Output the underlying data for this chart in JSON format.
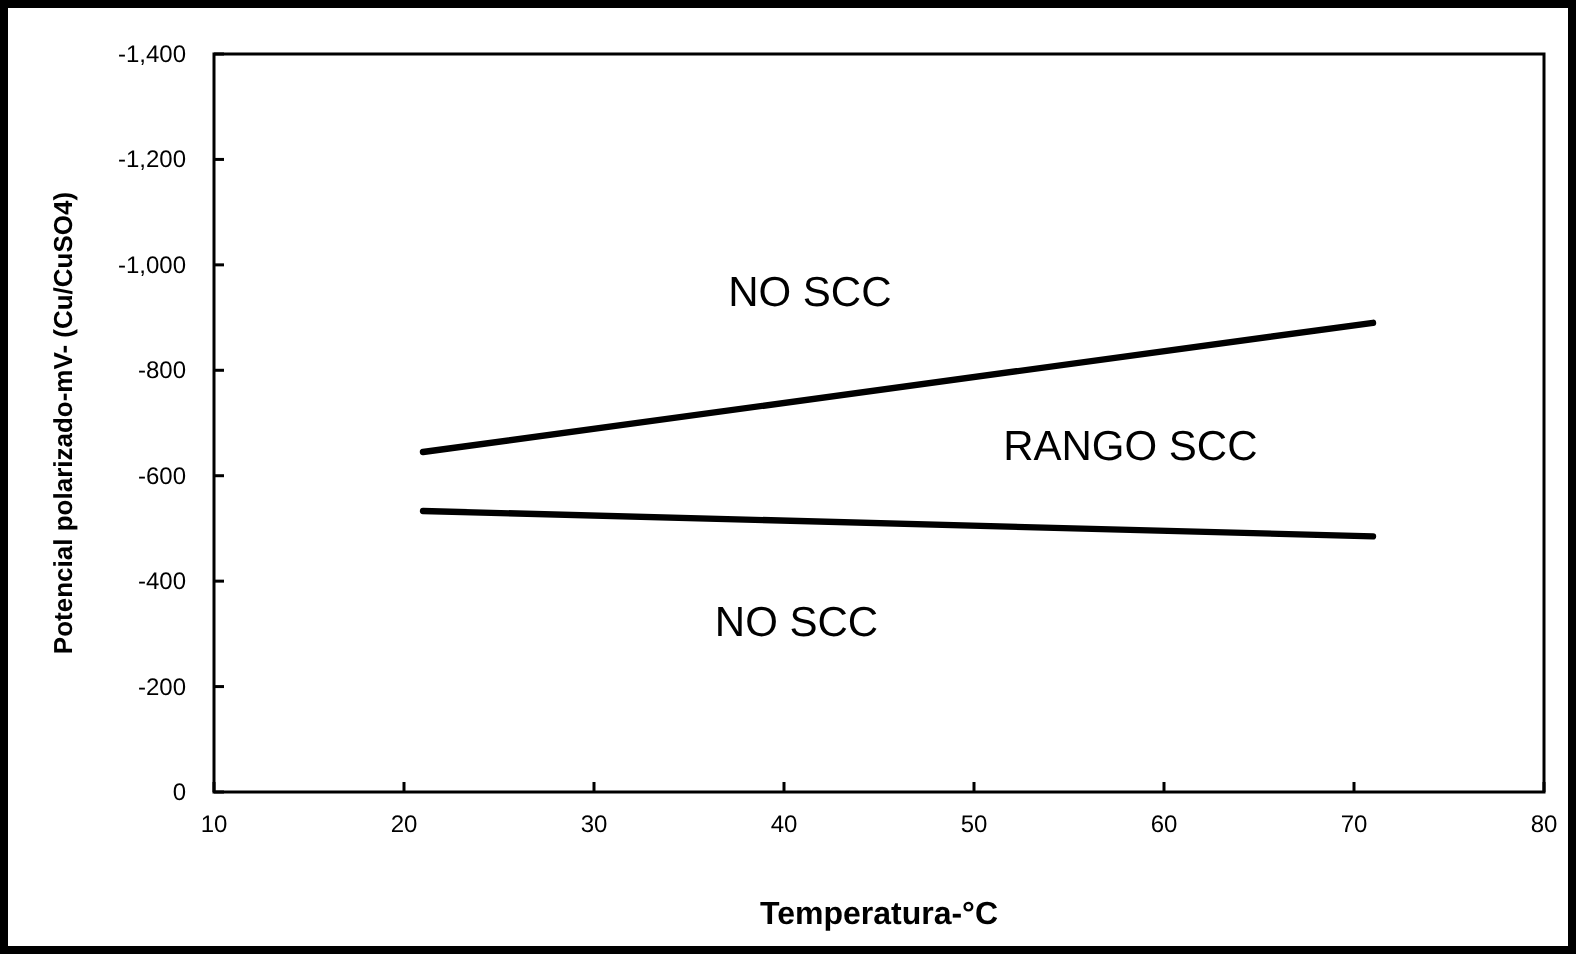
{
  "chart_data": {
    "type": "line",
    "xlabel": "Temperatura-°C",
    "ylabel": "Potencial polarizado-mV- (Cu/CuSO4)",
    "xlim": [
      10,
      80
    ],
    "xticks": [
      10,
      20,
      30,
      40,
      50,
      60,
      70,
      80
    ],
    "ylim": [
      0,
      -1400
    ],
    "yticks": [
      0,
      {
        "value": -200,
        "label": "-200"
      },
      {
        "value": -400,
        "label": "-400"
      },
      {
        "value": -600,
        "label": "-600"
      },
      {
        "value": -800,
        "label": "-800"
      },
      {
        "value": -1000,
        "label": "-1,000"
      },
      {
        "value": -1200,
        "label": "-1,200"
      },
      {
        "value": -1400,
        "label": "-1,400"
      }
    ],
    "series": [
      {
        "color": "#000000",
        "values": [
          -645,
          -890
        ]
      },
      {
        "color": "#000000",
        "values": [
          -533,
          -485
        ]
      }
    ],
    "x": [
      21,
      71
    ],
    "annotations": [
      "NO SCC",
      "RANGO SCC",
      "NO SCC"
    ],
    "marker": "none",
    "line_style": "solid"
  }
}
